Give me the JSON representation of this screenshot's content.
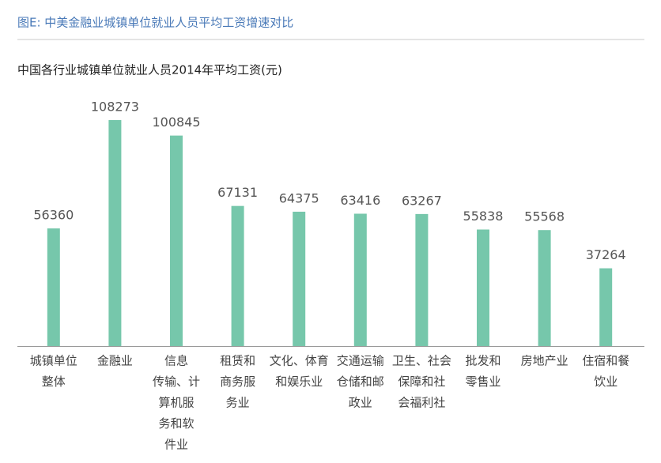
{
  "header": {
    "title": "图E: 中美金融业城镇单位就业人员平均工资增速对比"
  },
  "chart_data": {
    "type": "bar",
    "title": "中国各行业城镇单位就业人员2014年平均工资(元)",
    "categories": [
      [
        "城镇单位",
        "整体"
      ],
      [
        "金融业"
      ],
      [
        "信息",
        "传输、计",
        "算机服",
        "务和软",
        "件业"
      ],
      [
        "租赁和",
        "商务服",
        "务业"
      ],
      [
        "文化、体育",
        "和娱乐业"
      ],
      [
        "交通运输",
        "仓储和邮",
        "政业"
      ],
      [
        "卫生、社会",
        "保障和社",
        "会福利社"
      ],
      [
        "批发和",
        "零售业"
      ],
      [
        "房地产业"
      ],
      [
        "住宿和餐",
        "饮业"
      ]
    ],
    "values": [
      56360,
      108273,
      100845,
      67131,
      64375,
      63416,
      63267,
      55838,
      55568,
      37264
    ],
    "color": "#76c7ab",
    "ylim": [
      0,
      120000
    ]
  }
}
